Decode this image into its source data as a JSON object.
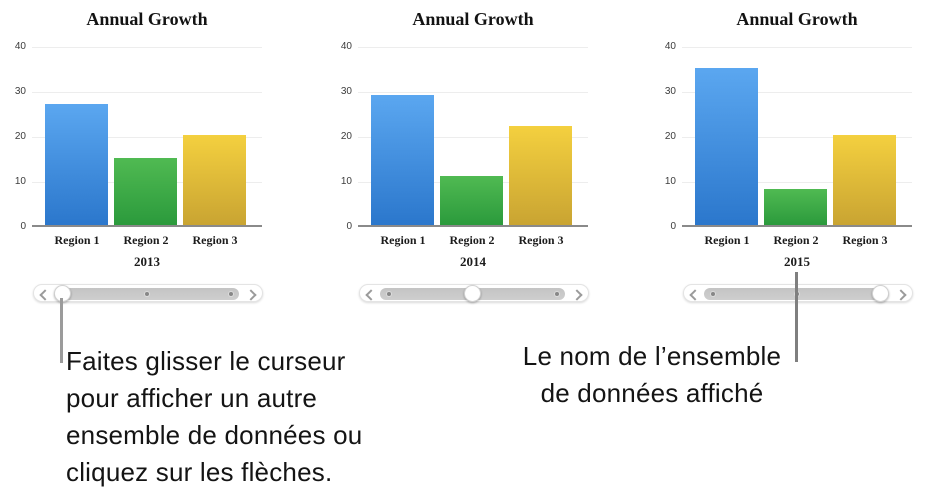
{
  "page": {
    "background": "#ffffff"
  },
  "chart_data": [
    {
      "type": "bar",
      "title": "Annual Growth",
      "categories": [
        "Region 1",
        "Region 2",
        "Region 3"
      ],
      "values": [
        27,
        15,
        20
      ],
      "dataset_label": "2013",
      "xlabel": "",
      "ylabel": "",
      "ylim": [
        0,
        40
      ],
      "y_ticks": [
        "40",
        "30",
        "20",
        "10",
        "0"
      ],
      "grid": true,
      "legend": "none",
      "slider_selected_index": 0
    },
    {
      "type": "bar",
      "title": "Annual Growth",
      "categories": [
        "Region 1",
        "Region 2",
        "Region 3"
      ],
      "values": [
        29,
        11,
        22
      ],
      "dataset_label": "2014",
      "xlabel": "",
      "ylabel": "",
      "ylim": [
        0,
        40
      ],
      "y_ticks": [
        "40",
        "30",
        "20",
        "10",
        "0"
      ],
      "grid": true,
      "legend": "none",
      "slider_selected_index": 1
    },
    {
      "type": "bar",
      "title": "Annual Growth",
      "categories": [
        "Region 1",
        "Region 2",
        "Region 3"
      ],
      "values": [
        35,
        8,
        20
      ],
      "dataset_label": "2015",
      "xlabel": "",
      "ylabel": "",
      "ylim": [
        0,
        40
      ],
      "y_ticks": [
        "40",
        "30",
        "20",
        "10",
        "0"
      ],
      "grid": true,
      "legend": "none",
      "slider_selected_index": 2
    }
  ],
  "colors": {
    "series": [
      {
        "name": "Region 1",
        "top": "#5BA7F0",
        "bottom": "#2B77CC"
      },
      {
        "name": "Region 2",
        "top": "#50BA52",
        "bottom": "#2B9A3C"
      },
      {
        "name": "Region 3",
        "top": "#F4D03F",
        "bottom": "#C9A432"
      }
    ],
    "gridline": "#EDEDED",
    "axis_line": "#8A8A8A",
    "slider_track": "#C9C9C9",
    "callout_line_left": "#9B9B9B",
    "callout_line_right": "#7F7F7F"
  },
  "slider": {
    "left_icon": "chevron-left",
    "right_icon": "chevron-right",
    "positions": 3
  },
  "annotations": {
    "slider_note": "Faites glisser le curseur\npour afficher un autre\nensemble de données ou\ncliquez sur les flèches.",
    "dataset_note": "Le nom de l’ensemble\nde données affiché"
  }
}
